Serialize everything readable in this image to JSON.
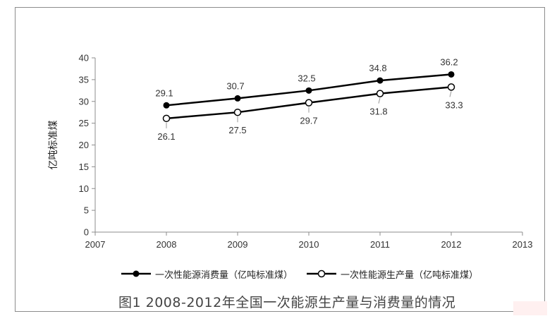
{
  "chart_data": {
    "type": "line",
    "x": [
      2008,
      2009,
      2010,
      2011,
      2012
    ],
    "xticks": [
      "2007",
      "2008",
      "2009",
      "2010",
      "2011",
      "2012",
      "2013"
    ],
    "xlim": [
      2007,
      2013
    ],
    "ylim": [
      0,
      40
    ],
    "yticks": [
      0,
      5,
      10,
      15,
      20,
      25,
      30,
      35,
      40
    ],
    "ylabel": "亿吨标准煤",
    "xlabel": "",
    "grid": false,
    "legend_position": "bottom",
    "series": [
      {
        "name": "一次性能源消费量（亿吨标准煤）",
        "values": [
          29.1,
          30.7,
          32.5,
          34.8,
          36.2
        ],
        "labels": [
          "29.1",
          "30.7",
          "32.5",
          "34.8",
          "36.2"
        ],
        "marker": "filled-circle",
        "color": "#000000"
      },
      {
        "name": "一次性能源生产量（亿吨标准煤）",
        "values": [
          26.1,
          27.5,
          29.7,
          31.8,
          33.3
        ],
        "labels": [
          "26.1",
          "27.5",
          "29.7",
          "31.8",
          "33.3"
        ],
        "marker": "open-circle",
        "color": "#000000"
      }
    ]
  },
  "caption": "图1 2008-2012年全国一次能源生产量与消费量的情况"
}
